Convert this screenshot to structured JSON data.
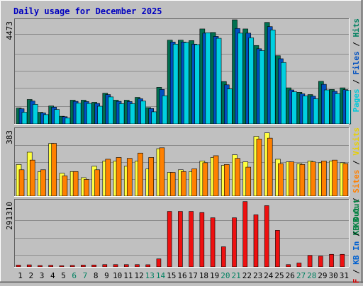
{
  "chart_data": {
    "type": "bar",
    "title": "Daily usage for December 2025",
    "x_labels": [
      "1",
      "2",
      "3",
      "4",
      "5",
      "6",
      "7",
      "8",
      "9",
      "10",
      "11",
      "12",
      "13",
      "14",
      "15",
      "16",
      "17",
      "18",
      "19",
      "20",
      "21",
      "22",
      "23",
      "24",
      "25",
      "26",
      "27",
      "28",
      "29",
      "30",
      "31"
    ],
    "weekend_days": [
      6,
      7,
      13,
      14,
      20,
      21,
      27,
      28
    ],
    "panels": [
      {
        "id": "hits-files-pages",
        "y_max_label": "4473",
        "y_max": 4473,
        "axis_legend": [
          {
            "text": "Pages",
            "color": "#00c8d8"
          },
          {
            "text": " / ",
            "color": "#000000"
          },
          {
            "text": "Files",
            "color": "#0050c0"
          },
          {
            "text": " / ",
            "color": "#000000"
          },
          {
            "text": "Hits",
            "color": "#008060"
          }
        ],
        "series": [
          {
            "name": "Hits",
            "color": "#007050",
            "values": [
              680,
              1050,
              500,
              770,
              330,
              1020,
              1020,
              930,
              1320,
              1020,
              1020,
              1140,
              700,
              1570,
              3600,
              3600,
              3580,
              4080,
              3930,
              1820,
              4473,
              4080,
              3370,
              4360,
              2930,
              1550,
              1360,
              1260,
              1830,
              1480,
              1550
            ]
          },
          {
            "name": "Files",
            "color": "#0050c0",
            "values": [
              650,
              980,
              470,
              720,
              310,
              970,
              960,
              880,
              1260,
              970,
              960,
              1080,
              660,
              1480,
              3520,
              3520,
              3430,
              3900,
              3760,
              1680,
              4100,
              3900,
              3230,
              4180,
              2800,
              1460,
              1290,
              1190,
              1700,
              1400,
              1470
            ]
          },
          {
            "name": "Pages",
            "color": "#00d0e0",
            "values": [
              500,
              840,
              400,
              620,
              250,
              890,
              880,
              760,
              1160,
              870,
              870,
              980,
              520,
              1210,
              3430,
              3500,
              3410,
              3920,
              3680,
              1500,
              3900,
              3700,
              3150,
              4040,
              2640,
              1380,
              1200,
              1080,
              1460,
              1300,
              1440
            ]
          }
        ]
      },
      {
        "id": "visits-sites",
        "y_max_label": "383",
        "y_max": 383,
        "axis_legend": [
          {
            "text": "KB Out",
            "color": "#008040"
          },
          {
            "text": " / ",
            "color": "#000000"
          },
          {
            "text": "Sites",
            "color": "#ff8000"
          },
          {
            "text": " / ",
            "color": "#000000"
          },
          {
            "text": "Visits",
            "color": "#e8d000"
          }
        ],
        "series": [
          {
            "name": "Visits",
            "color": "#ffff40",
            "values": [
              180,
              250,
              140,
              300,
              130,
              140,
              105,
              170,
              200,
              200,
              170,
              200,
              155,
              270,
              135,
              150,
              140,
              200,
              220,
              175,
              235,
              195,
              340,
              360,
              210,
              195,
              185,
              200,
              190,
              200,
              190
            ]
          },
          {
            "name": "Sites",
            "color": "#ff8000",
            "values": [
              150,
              205,
              150,
              300,
              115,
              140,
              95,
              150,
              210,
              220,
              215,
              245,
              220,
              275,
              135,
              140,
              155,
              190,
              230,
              180,
              215,
              165,
              325,
              330,
              185,
              195,
              180,
              195,
              200,
              205,
              185
            ]
          }
        ]
      },
      {
        "id": "kbytes",
        "y_max_label": "291310",
        "y_max": 291310,
        "axis_legend": [
          {
            "text": "KB F",
            "color": "#d00000"
          },
          {
            "text": " / ",
            "color": "#000000"
          },
          {
            "text": "KB In",
            "color": "#0060d0"
          },
          {
            "text": " / ",
            "color": "#000000"
          },
          {
            "text": "KB Out",
            "color": "#008040"
          }
        ],
        "series": [
          {
            "name": "KB F",
            "color": "#ee1010",
            "values": [
              8000,
              9000,
              6000,
              7000,
              5000,
              6500,
              8000,
              8500,
              10000,
              10000,
              10000,
              10000,
              9500,
              35000,
              243000,
              243000,
              243000,
              238000,
              215000,
              88000,
              215000,
              286000,
              228000,
              268000,
              160000,
              10000,
              17000,
              50000,
              47000,
              55000,
              55000
            ]
          }
        ]
      }
    ]
  }
}
